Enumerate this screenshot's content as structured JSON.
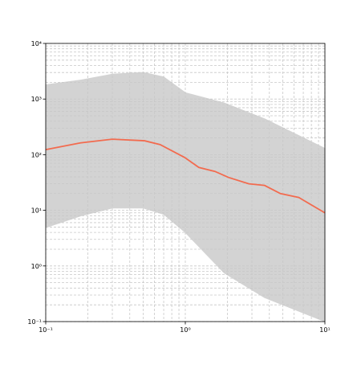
{
  "chart_data": {
    "type": "line",
    "log_x": true,
    "log_y": true,
    "grid": true,
    "xlim": [
      0.1,
      10
    ],
    "ylim": [
      0.1,
      10000
    ],
    "xticks": [
      {
        "value": 0.1,
        "label": "10⁻¹"
      },
      {
        "value": 1,
        "label": "10⁰"
      },
      {
        "value": 10,
        "label": "10¹"
      }
    ],
    "yticks": [
      {
        "value": 0.1,
        "label": "10⁻¹"
      },
      {
        "value": 1,
        "label": "10⁰"
      },
      {
        "value": 10,
        "label": "10¹"
      },
      {
        "value": 100,
        "label": "10²"
      },
      {
        "value": 1000,
        "label": "10³"
      },
      {
        "value": 10000,
        "label": "10⁴"
      }
    ],
    "minor_xticks": [
      0.2,
      0.3,
      0.4,
      0.5,
      0.6,
      0.7,
      0.8,
      0.9,
      2,
      3,
      4,
      5,
      6,
      7,
      8,
      9
    ],
    "minor_yticks": [
      0.2,
      0.3,
      0.4,
      0.5,
      0.6,
      0.7,
      0.8,
      0.9,
      2,
      3,
      4,
      5,
      6,
      7,
      8,
      9,
      20,
      30,
      40,
      50,
      60,
      70,
      80,
      90,
      200,
      300,
      400,
      500,
      600,
      700,
      800,
      900,
      2000,
      3000,
      4000,
      5000,
      6000,
      7000,
      8000,
      9000
    ],
    "band": {
      "color": "#d3d3d3",
      "x": [
        0.1,
        0.18,
        0.3,
        0.5,
        0.7,
        1,
        1.9,
        3.7,
        10
      ],
      "upper": [
        1800,
        2200,
        2800,
        3000,
        2500,
        1300,
        850,
        440,
        130
      ],
      "lower": [
        4.9,
        8,
        11,
        11,
        8.5,
        4,
        0.75,
        0.27,
        0.1
      ]
    },
    "median": {
      "color": "#f26b4f",
      "x": [
        0.1,
        0.177,
        0.3,
        0.51,
        0.66,
        0.99,
        1.25,
        1.63,
        2.04,
        2.85,
        3.7,
        4.8,
        6.5,
        10
      ],
      "values": [
        123,
        163,
        190,
        178,
        152,
        89,
        59,
        50,
        39,
        30,
        28,
        20,
        17,
        9
      ]
    }
  }
}
